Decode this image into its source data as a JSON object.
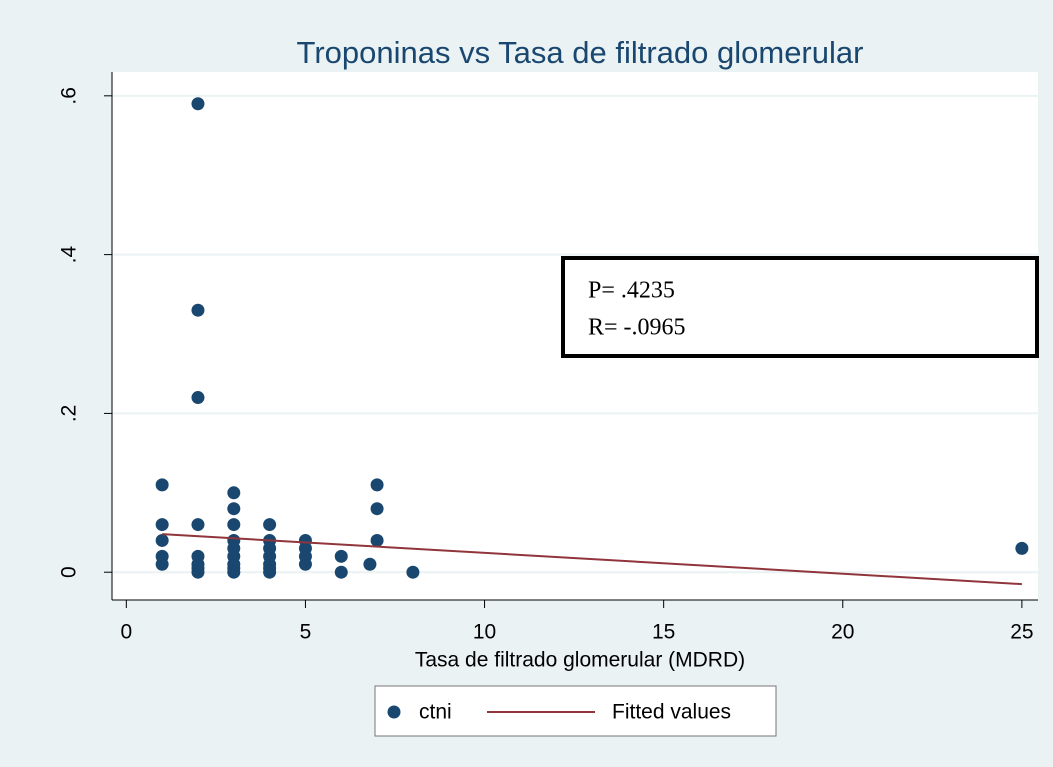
{
  "chart_data": {
    "type": "scatter",
    "title": "Troponinas vs Tasa de filtrado glomerular",
    "x_label": "Tasa de filtrado glomerular (MDRD)",
    "series": [
      {
        "name": "ctni",
        "color": "#1a476f",
        "type": "scatter",
        "x": [
          1,
          1,
          1,
          1,
          1,
          2,
          2,
          2,
          2,
          2,
          2,
          2,
          2,
          3,
          3,
          3,
          3,
          3,
          3,
          3,
          3,
          3,
          4,
          4,
          4,
          4,
          4,
          4,
          4,
          5,
          5,
          5,
          5,
          6,
          6,
          6.8,
          7,
          7,
          7,
          8,
          25
        ],
        "values": [
          0.11,
          0.06,
          0.04,
          0.02,
          0.01,
          0.59,
          0.33,
          0.22,
          0.06,
          0.02,
          0.01,
          0.005,
          0,
          0.1,
          0.08,
          0.06,
          0.04,
          0.03,
          0.02,
          0.01,
          0.005,
          0,
          0.06,
          0.04,
          0.03,
          0.02,
          0.01,
          0.005,
          0,
          0.04,
          0.03,
          0.02,
          0.01,
          0.02,
          0,
          0.01,
          0.11,
          0.08,
          0.04,
          0,
          0.03
        ]
      },
      {
        "name": "Fitted values",
        "color": "#90353b",
        "type": "line",
        "x": [
          1,
          25
        ],
        "values": [
          0.048,
          -0.015
        ]
      }
    ],
    "annotations": [
      "P= .4235",
      "R= -.0965"
    ],
    "xlim": [
      -0.4,
      25.45
    ],
    "ylim": [
      -0.035,
      0.63
    ],
    "xticks": [
      0,
      5,
      10,
      15,
      20,
      25
    ],
    "yticks": [
      0,
      {
        "value": 0.2,
        "label": ".2"
      },
      {
        "value": 0.4,
        "label": ".4"
      },
      {
        "value": 0.6,
        "label": ".6"
      }
    ],
    "grid": true,
    "legend": "bottom"
  }
}
